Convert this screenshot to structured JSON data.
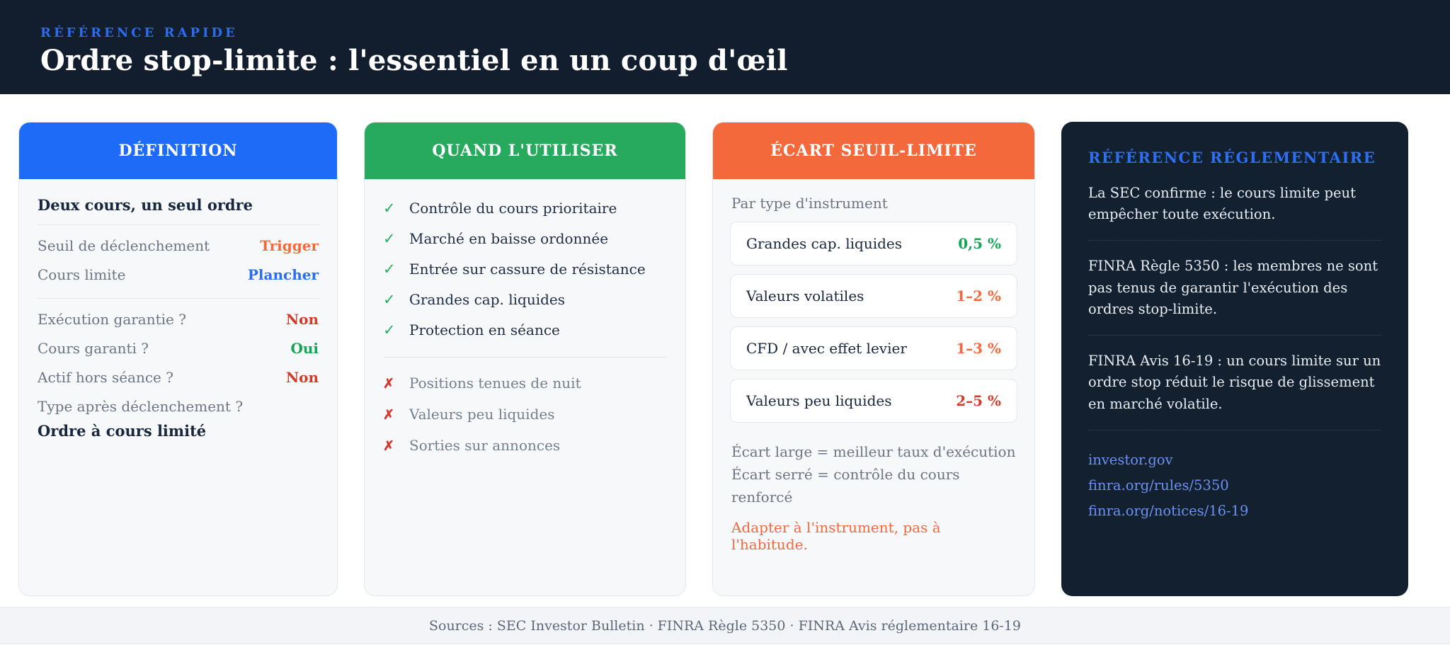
{
  "header": {
    "eyebrow": "RÉFÉRENCE RAPIDE",
    "title": "Ordre stop-limite : l'essentiel en un coup d'œil",
    "bg": "#121d2d",
    "eyebrow_color": "#2b6cf1"
  },
  "icons": {
    "check": "✓",
    "cross": "✗"
  },
  "colors": {
    "blue": "#1e6bf7",
    "green": "#27a95e",
    "orange": "#f4693b",
    "red": "#d6392f",
    "dark_navy": "#13202f"
  },
  "cards": {
    "definition": {
      "title": "DÉFINITION",
      "headline": "Deux cours, un seul ordre",
      "rows": [
        {
          "label": "Seuil de déclenchement",
          "value": "Trigger",
          "color": "#f4693b"
        },
        {
          "label": "Cours limite",
          "value": "Plancher",
          "color": "#2a6df2"
        }
      ],
      "rows2": [
        {
          "label": "Exécution garantie ?",
          "value": "Non",
          "color": "#d23b2a"
        },
        {
          "label": "Cours garanti ?",
          "value": "Oui",
          "color": "#16a457"
        },
        {
          "label": "Actif hors séance ?",
          "value": "Non",
          "color": "#d23b2a"
        }
      ],
      "type_question": "Type après déclenchement ?",
      "type_answer": "Ordre à cours limité"
    },
    "when": {
      "title": "QUAND L'UTILISER",
      "do_items": [
        "Contrôle du cours prioritaire",
        "Marché en baisse ordonnée",
        "Entrée sur cassure de résistance",
        "Grandes cap. liquides",
        "Protection en séance"
      ],
      "dont_items": [
        "Positions tenues de nuit",
        "Valeurs peu liquides",
        "Sorties sur annonces"
      ]
    },
    "spread": {
      "title": "ÉCART SEUIL-LIMITE",
      "subtitle": "Par type d'instrument",
      "rows": [
        {
          "label": "Grandes cap. liquides",
          "value": "0,5 %",
          "color": "#16a457"
        },
        {
          "label": "Valeurs volatiles",
          "value": "1–2 %",
          "color": "#f4693b"
        },
        {
          "label": "CFD / avec effet levier",
          "value": "1–3 %",
          "color": "#f4693b"
        },
        {
          "label": "Valeurs peu liquides",
          "value": "2–5 %",
          "color": "#d23b2a"
        }
      ],
      "notes": [
        "Écart large = meilleur taux d'exécution",
        "Écart serré = contrôle du cours renforcé"
      ],
      "callout": "Adapter à l'instrument, pas à l'habitude."
    },
    "regulatory": {
      "title": "RÉFÉRENCE RÉGLEMENTAIRE",
      "paragraphs": [
        "La SEC confirme : le cours limite peut empêcher toute exécution.",
        "FINRA Règle 5350 : les membres ne sont pas tenus de garantir l'exécution des ordres stop-limite.",
        "FINRA Avis 16-19 : un cours limite sur un ordre stop réduit le risque de glissement en marché volatile."
      ],
      "links": [
        "investor.gov",
        "finra.org/rules/5350",
        "finra.org/notices/16-19"
      ]
    }
  },
  "footer": {
    "text": "Sources : SEC Investor Bulletin · FINRA Règle 5350 · FINRA Avis réglementaire 16-19"
  }
}
